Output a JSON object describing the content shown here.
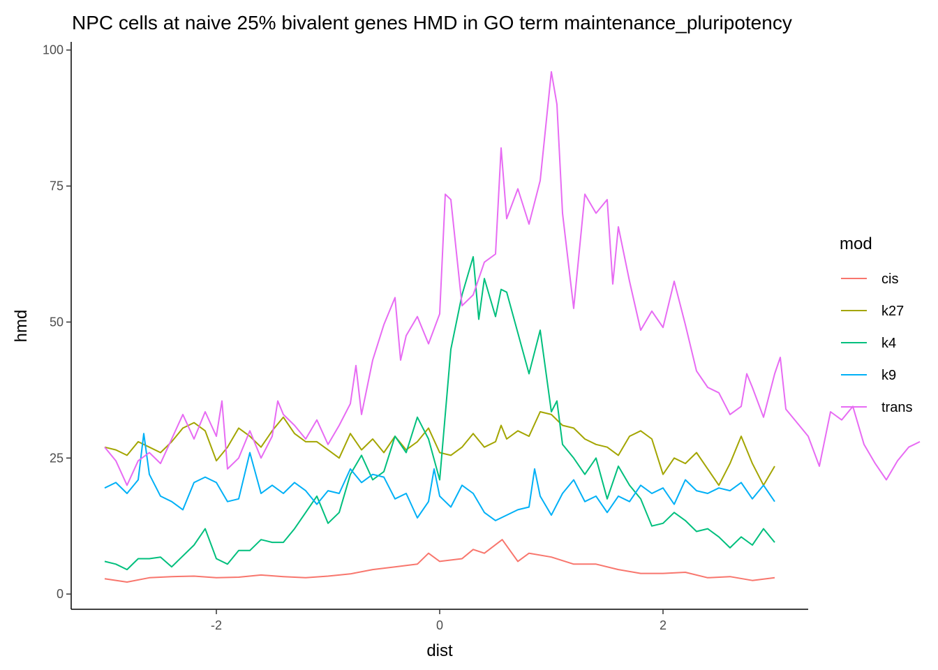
{
  "chart_data": {
    "type": "line",
    "title": "NPC cells at naive 25% bivalent genes HMD in GO term maintenance_pluripotency",
    "xlabel": "dist",
    "ylabel": "hmd",
    "xlim": [
      -3.3,
      3.3
    ],
    "ylim": [
      -2.8,
      101.5
    ],
    "x_ticks": [
      -2,
      0,
      2
    ],
    "x_tick_labels": [
      "-2",
      "0",
      "2"
    ],
    "y_ticks": [
      0,
      25,
      50,
      75,
      100
    ],
    "y_tick_labels": [
      "0",
      "25",
      "50",
      "75",
      "100"
    ],
    "grid": false,
    "legend": {
      "title": "mod",
      "position": "right"
    },
    "series": [
      {
        "name": "cis",
        "color": "#F8766D",
        "points": [
          [
            -3,
            2.8
          ],
          [
            -2.8,
            2.2
          ],
          [
            -2.6,
            3
          ],
          [
            -2.4,
            3.2
          ],
          [
            -2.2,
            3.3
          ],
          [
            -2,
            3
          ],
          [
            -1.8,
            3.1
          ],
          [
            -1.6,
            3.5
          ],
          [
            -1.4,
            3.2
          ],
          [
            -1.2,
            3
          ],
          [
            -1,
            3.3
          ],
          [
            -0.8,
            3.7
          ],
          [
            -0.6,
            4.5
          ],
          [
            -0.4,
            5
          ],
          [
            -0.2,
            5.5
          ],
          [
            -0.1,
            7.5
          ],
          [
            0,
            6
          ],
          [
            0.2,
            6.5
          ],
          [
            0.3,
            8.2
          ],
          [
            0.4,
            7.5
          ],
          [
            0.56,
            10
          ],
          [
            0.7,
            6
          ],
          [
            0.8,
            7.5
          ],
          [
            1,
            6.8
          ],
          [
            1.2,
            5.5
          ],
          [
            1.4,
            5.5
          ],
          [
            1.6,
            4.5
          ],
          [
            1.8,
            3.8
          ],
          [
            2,
            3.8
          ],
          [
            2.2,
            4
          ],
          [
            2.4,
            3
          ],
          [
            2.6,
            3.2
          ],
          [
            2.8,
            2.5
          ],
          [
            3,
            3
          ]
        ]
      },
      {
        "name": "k27",
        "color": "#A3A500",
        "points": [
          [
            -3,
            27
          ],
          [
            -2.9,
            26.5
          ],
          [
            -2.8,
            25.5
          ],
          [
            -2.7,
            28
          ],
          [
            -2.6,
            27
          ],
          [
            -2.5,
            26
          ],
          [
            -2.4,
            28
          ],
          [
            -2.3,
            30.5
          ],
          [
            -2.2,
            31.5
          ],
          [
            -2.1,
            30
          ],
          [
            -2,
            24.5
          ],
          [
            -1.9,
            27
          ],
          [
            -1.8,
            30.5
          ],
          [
            -1.7,
            29
          ],
          [
            -1.6,
            27
          ],
          [
            -1.5,
            30
          ],
          [
            -1.4,
            32.5
          ],
          [
            -1.3,
            29.5
          ],
          [
            -1.2,
            28
          ],
          [
            -1.1,
            28
          ],
          [
            -1,
            26.5
          ],
          [
            -0.9,
            25
          ],
          [
            -0.8,
            29.5
          ],
          [
            -0.7,
            26.5
          ],
          [
            -0.6,
            28.5
          ],
          [
            -0.5,
            26
          ],
          [
            -0.4,
            29
          ],
          [
            -0.3,
            26.5
          ],
          [
            -0.2,
            28
          ],
          [
            -0.1,
            30.5
          ],
          [
            0,
            26
          ],
          [
            0.1,
            25.5
          ],
          [
            0.2,
            27
          ],
          [
            0.3,
            29.5
          ],
          [
            0.4,
            27
          ],
          [
            0.5,
            28
          ],
          [
            0.55,
            31
          ],
          [
            0.6,
            28.5
          ],
          [
            0.7,
            30
          ],
          [
            0.8,
            29
          ],
          [
            0.9,
            33.5
          ],
          [
            1,
            33
          ],
          [
            1.1,
            31
          ],
          [
            1.2,
            30.5
          ],
          [
            1.3,
            28.5
          ],
          [
            1.4,
            27.5
          ],
          [
            1.5,
            27
          ],
          [
            1.6,
            25.5
          ],
          [
            1.7,
            29
          ],
          [
            1.8,
            30
          ],
          [
            1.9,
            28.5
          ],
          [
            2,
            22
          ],
          [
            2.1,
            25
          ],
          [
            2.2,
            24
          ],
          [
            2.3,
            26
          ],
          [
            2.4,
            23
          ],
          [
            2.5,
            20
          ],
          [
            2.6,
            24
          ],
          [
            2.7,
            29
          ],
          [
            2.8,
            24
          ],
          [
            2.9,
            20
          ],
          [
            3,
            23.5
          ]
        ]
      },
      {
        "name": "k4",
        "color": "#00BF7D",
        "points": [
          [
            -3,
            6
          ],
          [
            -2.9,
            5.5
          ],
          [
            -2.8,
            4.5
          ],
          [
            -2.7,
            6.5
          ],
          [
            -2.6,
            6.5
          ],
          [
            -2.5,
            6.8
          ],
          [
            -2.4,
            5
          ],
          [
            -2.2,
            9
          ],
          [
            -2.1,
            12
          ],
          [
            -2,
            6.5
          ],
          [
            -1.9,
            5.5
          ],
          [
            -1.8,
            8
          ],
          [
            -1.7,
            8
          ],
          [
            -1.6,
            10
          ],
          [
            -1.5,
            9.5
          ],
          [
            -1.4,
            9.5
          ],
          [
            -1.3,
            12
          ],
          [
            -1.2,
            15
          ],
          [
            -1.1,
            18
          ],
          [
            -1,
            13
          ],
          [
            -0.9,
            15
          ],
          [
            -0.8,
            22
          ],
          [
            -0.7,
            25.5
          ],
          [
            -0.6,
            21
          ],
          [
            -0.5,
            22.5
          ],
          [
            -0.4,
            29
          ],
          [
            -0.3,
            26
          ],
          [
            -0.2,
            32.5
          ],
          [
            -0.1,
            28.5
          ],
          [
            0,
            21
          ],
          [
            0.1,
            45
          ],
          [
            0.2,
            55
          ],
          [
            0.3,
            62
          ],
          [
            0.35,
            50.5
          ],
          [
            0.4,
            58
          ],
          [
            0.5,
            51
          ],
          [
            0.55,
            56
          ],
          [
            0.6,
            55.5
          ],
          [
            0.7,
            48
          ],
          [
            0.8,
            40.5
          ],
          [
            0.9,
            48.5
          ],
          [
            1,
            33.5
          ],
          [
            1.05,
            35.5
          ],
          [
            1.1,
            27.5
          ],
          [
            1.2,
            25
          ],
          [
            1.3,
            22
          ],
          [
            1.4,
            25
          ],
          [
            1.5,
            17.5
          ],
          [
            1.6,
            23.5
          ],
          [
            1.7,
            20
          ],
          [
            1.8,
            17.5
          ],
          [
            1.9,
            12.5
          ],
          [
            2,
            13
          ],
          [
            2.1,
            15
          ],
          [
            2.2,
            13.5
          ],
          [
            2.3,
            11.5
          ],
          [
            2.4,
            12
          ],
          [
            2.5,
            10.5
          ],
          [
            2.6,
            8.5
          ],
          [
            2.7,
            10.5
          ],
          [
            2.8,
            9
          ],
          [
            2.9,
            12
          ],
          [
            3,
            9.5
          ]
        ]
      },
      {
        "name": "k9",
        "color": "#00B0F6",
        "points": [
          [
            -3,
            19.5
          ],
          [
            -2.9,
            20.5
          ],
          [
            -2.8,
            18.5
          ],
          [
            -2.7,
            21
          ],
          [
            -2.65,
            29.5
          ],
          [
            -2.6,
            22
          ],
          [
            -2.5,
            18
          ],
          [
            -2.4,
            17
          ],
          [
            -2.3,
            15.5
          ],
          [
            -2.2,
            20.5
          ],
          [
            -2.1,
            21.5
          ],
          [
            -2,
            20.5
          ],
          [
            -1.9,
            17
          ],
          [
            -1.8,
            17.5
          ],
          [
            -1.7,
            26
          ],
          [
            -1.6,
            18.5
          ],
          [
            -1.5,
            20
          ],
          [
            -1.4,
            18.5
          ],
          [
            -1.3,
            20.5
          ],
          [
            -1.2,
            19
          ],
          [
            -1.1,
            16.5
          ],
          [
            -1,
            19
          ],
          [
            -0.9,
            18.5
          ],
          [
            -0.8,
            23
          ],
          [
            -0.7,
            20.5
          ],
          [
            -0.6,
            22
          ],
          [
            -0.5,
            21.5
          ],
          [
            -0.4,
            17.5
          ],
          [
            -0.3,
            18.5
          ],
          [
            -0.2,
            14
          ],
          [
            -0.1,
            17
          ],
          [
            -0.05,
            23
          ],
          [
            0,
            18
          ],
          [
            0.1,
            16
          ],
          [
            0.2,
            20
          ],
          [
            0.3,
            18.5
          ],
          [
            0.4,
            15
          ],
          [
            0.5,
            13.5
          ],
          [
            0.6,
            14.5
          ],
          [
            0.7,
            15.5
          ],
          [
            0.8,
            16
          ],
          [
            0.85,
            23
          ],
          [
            0.9,
            18
          ],
          [
            1,
            14.5
          ],
          [
            1.1,
            18.5
          ],
          [
            1.2,
            21
          ],
          [
            1.3,
            17
          ],
          [
            1.4,
            18
          ],
          [
            1.5,
            15
          ],
          [
            1.6,
            18
          ],
          [
            1.7,
            17
          ],
          [
            1.8,
            20
          ],
          [
            1.9,
            18.5
          ],
          [
            2,
            19.5
          ],
          [
            2.1,
            16.5
          ],
          [
            2.2,
            21
          ],
          [
            2.3,
            19
          ],
          [
            2.4,
            18.5
          ],
          [
            2.5,
            19.5
          ],
          [
            2.6,
            19
          ],
          [
            2.7,
            20.5
          ],
          [
            2.8,
            17.5
          ],
          [
            2.9,
            20
          ],
          [
            3,
            17
          ]
        ]
      },
      {
        "name": "trans",
        "color": "#E76BF3",
        "points": [
          [
            -3,
            27
          ],
          [
            -2.9,
            24.5
          ],
          [
            -2.8,
            20
          ],
          [
            -2.7,
            24.5
          ],
          [
            -2.6,
            26
          ],
          [
            -2.5,
            24
          ],
          [
            -2.4,
            28.5
          ],
          [
            -2.3,
            33
          ],
          [
            -2.2,
            28.5
          ],
          [
            -2.1,
            33.5
          ],
          [
            -2,
            29
          ],
          [
            -1.95,
            35.5
          ],
          [
            -1.9,
            23
          ],
          [
            -1.8,
            25
          ],
          [
            -1.7,
            30
          ],
          [
            -1.6,
            25
          ],
          [
            -1.5,
            29
          ],
          [
            -1.45,
            35.5
          ],
          [
            -1.4,
            33
          ],
          [
            -1.3,
            31
          ],
          [
            -1.2,
            28.5
          ],
          [
            -1.1,
            32
          ],
          [
            -1,
            27.5
          ],
          [
            -0.9,
            31
          ],
          [
            -0.8,
            35
          ],
          [
            -0.75,
            42
          ],
          [
            -0.7,
            33
          ],
          [
            -0.6,
            43
          ],
          [
            -0.5,
            49.5
          ],
          [
            -0.4,
            54.5
          ],
          [
            -0.35,
            43
          ],
          [
            -0.3,
            47.5
          ],
          [
            -0.2,
            51
          ],
          [
            -0.1,
            46
          ],
          [
            0,
            51.5
          ],
          [
            0.05,
            73.5
          ],
          [
            0.1,
            72.5
          ],
          [
            0.2,
            53
          ],
          [
            0.3,
            55
          ],
          [
            0.4,
            61
          ],
          [
            0.5,
            62.5
          ],
          [
            0.55,
            82
          ],
          [
            0.6,
            69
          ],
          [
            0.7,
            74.5
          ],
          [
            0.8,
            68
          ],
          [
            0.9,
            76
          ],
          [
            1,
            96
          ],
          [
            1.05,
            90
          ],
          [
            1.1,
            70
          ],
          [
            1.2,
            52.5
          ],
          [
            1.3,
            73.5
          ],
          [
            1.4,
            70
          ],
          [
            1.5,
            72.5
          ],
          [
            1.55,
            57
          ],
          [
            1.6,
            67.5
          ],
          [
            1.7,
            57.5
          ],
          [
            1.8,
            48.5
          ],
          [
            1.9,
            52
          ],
          [
            2,
            49
          ],
          [
            2.1,
            57.5
          ],
          [
            2.2,
            49.5
          ],
          [
            2.3,
            41
          ],
          [
            2.4,
            38
          ],
          [
            2.5,
            37
          ],
          [
            2.6,
            33
          ],
          [
            2.7,
            34.5
          ],
          [
            2.75,
            40.5
          ],
          [
            2.8,
            38
          ],
          [
            2.9,
            32.5
          ],
          [
            3,
            40.5
          ],
          [
            3.05,
            43.5
          ],
          [
            3.1,
            34
          ],
          [
            3.2,
            31.5
          ],
          [
            3.3,
            29
          ],
          [
            3.4,
            23.5
          ],
          [
            3.5,
            33.5
          ],
          [
            3.6,
            32
          ],
          [
            3.7,
            34.5
          ],
          [
            3.8,
            27.5
          ],
          [
            3.9,
            24
          ],
          [
            4,
            21
          ],
          [
            4.1,
            24.5
          ],
          [
            4.2,
            27
          ],
          [
            4.3,
            28
          ]
        ]
      }
    ]
  }
}
